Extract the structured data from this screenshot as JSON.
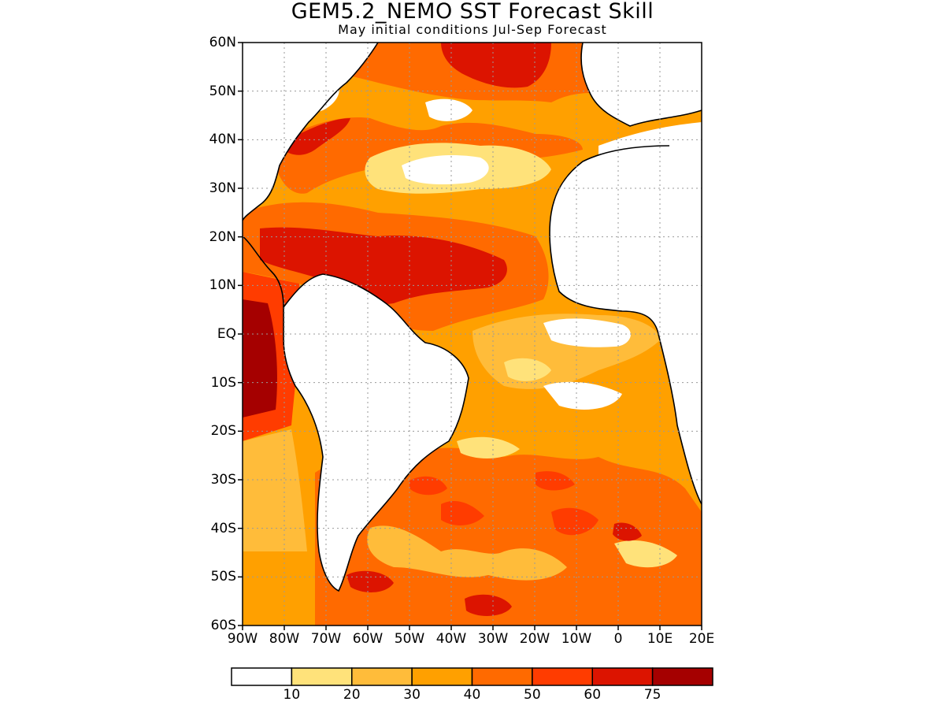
{
  "title": "GEM5.2_NEMO SST Forecast Skill",
  "subtitle": "May initial conditions  Jul-Sep Forecast",
  "lat_ticks": [
    {
      "label": "60N",
      "lat": 60
    },
    {
      "label": "50N",
      "lat": 50
    },
    {
      "label": "40N",
      "lat": 40
    },
    {
      "label": "30N",
      "lat": 30
    },
    {
      "label": "20N",
      "lat": 20
    },
    {
      "label": "10N",
      "lat": 10
    },
    {
      "label": "EQ",
      "lat": 0
    },
    {
      "label": "10S",
      "lat": -10
    },
    {
      "label": "20S",
      "lat": -20
    },
    {
      "label": "30S",
      "lat": -30
    },
    {
      "label": "40S",
      "lat": -40
    },
    {
      "label": "50S",
      "lat": -50
    },
    {
      "label": "60S",
      "lat": -60
    }
  ],
  "lon_ticks": [
    {
      "label": "90W",
      "lon": -90
    },
    {
      "label": "80W",
      "lon": -80
    },
    {
      "label": "70W",
      "lon": -70
    },
    {
      "label": "60W",
      "lon": -60
    },
    {
      "label": "50W",
      "lon": -50
    },
    {
      "label": "40W",
      "lon": -40
    },
    {
      "label": "30W",
      "lon": -30
    },
    {
      "label": "20W",
      "lon": -20
    },
    {
      "label": "10W",
      "lon": -10
    },
    {
      "label": "0",
      "lon": 0
    },
    {
      "label": "10E",
      "lon": 10
    },
    {
      "label": "20E",
      "lon": 20
    }
  ],
  "map": {
    "lon_range": [
      -90,
      20
    ],
    "lat_range": [
      -60,
      60
    ],
    "grid_interval_deg": 10
  },
  "colorbar": {
    "bins": [
      {
        "color": "#ffffff"
      },
      {
        "color": "#ffe27a"
      },
      {
        "color": "#ffbc3a"
      },
      {
        "color": "#ffa000"
      },
      {
        "color": "#ff6a00"
      },
      {
        "color": "#ff3c00"
      },
      {
        "color": "#dc1400"
      },
      {
        "color": "#a50000"
      }
    ],
    "labels": [
      "10",
      "20",
      "30",
      "40",
      "50",
      "60",
      "75"
    ]
  },
  "colors": {
    "land": "#ffffff",
    "coastline": "#000000",
    "grid": "#9a9a9a"
  }
}
